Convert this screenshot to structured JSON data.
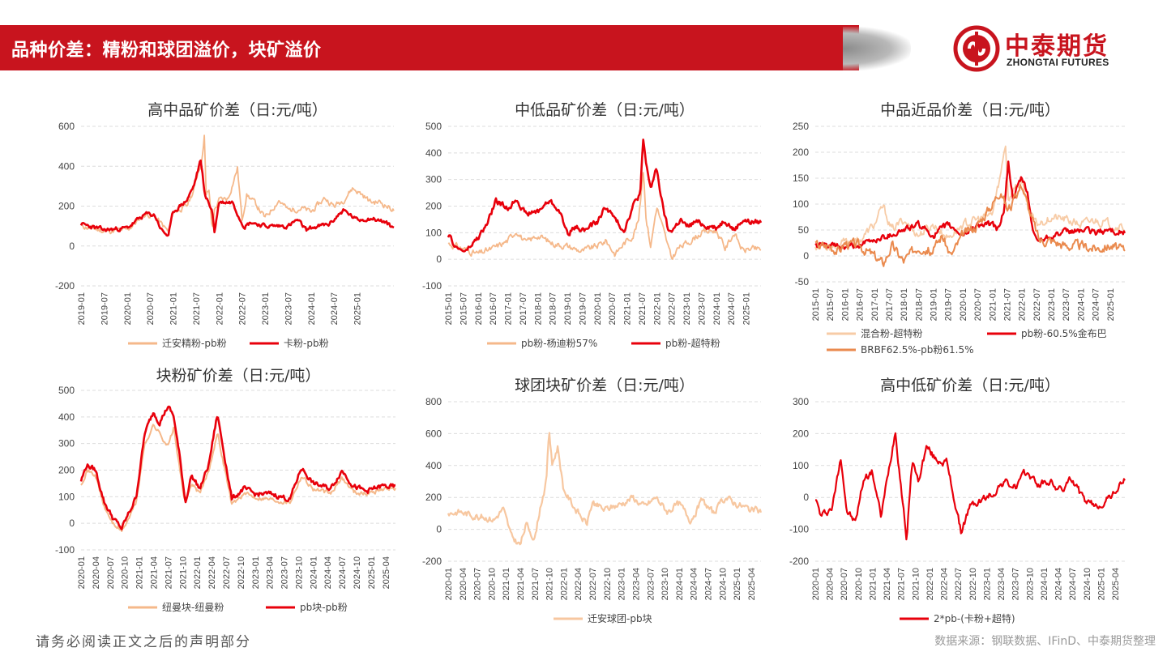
{
  "header": {
    "title": "品种价差：精粉和球团溢价，块矿溢价",
    "logo_cn": "中泰期货",
    "logo_en": "ZHONGTAI FUTURES"
  },
  "footer": {
    "disclaimer": "请务必阅读正文之后的声明部分",
    "source": "数据来源：钢联数据、IFinD、中泰期货整理"
  },
  "colors": {
    "red": "#e8000b",
    "light_orange": "#f5c49c",
    "orange": "#f0a06a",
    "dark_orange": "#e8834a"
  },
  "chart_data": [
    {
      "id": "c1",
      "type": "line",
      "title": "高中品矿价差（日:元/吨）",
      "ylim": [
        -200,
        600
      ],
      "yticks": [
        -200,
        0,
        200,
        400,
        600
      ],
      "xlim": [
        2019.0,
        2025.8
      ],
      "xticks": [
        "2019-01",
        "2019-07",
        "2020-01",
        "2020-07",
        "2021-01",
        "2021-07",
        "2022-01",
        "2022-07",
        "2023-01",
        "2023-07",
        "2024-01",
        "2024-07",
        "2025-01"
      ],
      "series": [
        {
          "name": "迁安精粉-pb粉",
          "color": "#f5b88a",
          "width": 1.8,
          "noise": 12,
          "seed": 11,
          "x": [
            2019.0,
            2019.5,
            2020.0,
            2020.4,
            2020.6,
            2020.9,
            2021.0,
            2021.3,
            2021.45,
            2021.55,
            2021.62,
            2021.68,
            2021.72,
            2021.78,
            2021.85,
            2021.9,
            2022.0,
            2022.2,
            2022.4,
            2022.5,
            2022.6,
            2022.8,
            2023.0,
            2023.3,
            2023.5,
            2023.8,
            2024.0,
            2024.3,
            2024.5,
            2024.7,
            2024.9,
            2025.1,
            2025.3,
            2025.5,
            2025.8
          ],
          "y": [
            100,
            75,
            80,
            160,
            150,
            70,
            170,
            200,
            280,
            380,
            420,
            560,
            250,
            280,
            80,
            180,
            230,
            240,
            390,
            130,
            260,
            210,
            140,
            230,
            180,
            190,
            170,
            240,
            200,
            230,
            290,
            260,
            220,
            220,
            180
          ]
        },
        {
          "name": "卡粉-pb粉",
          "color": "#e8000b",
          "width": 2.6,
          "noise": 9,
          "seed": 23,
          "x": [
            2019.0,
            2019.5,
            2020.0,
            2020.4,
            2020.6,
            2020.75,
            2020.9,
            2021.0,
            2021.3,
            2021.45,
            2021.6,
            2021.7,
            2021.85,
            2021.9,
            2022.0,
            2022.3,
            2022.45,
            2022.55,
            2022.7,
            2023.0,
            2023.5,
            2023.7,
            2023.9,
            2024.0,
            2024.4,
            2024.7,
            2025.0,
            2025.3,
            2025.6,
            2025.8
          ],
          "y": [
            110,
            80,
            90,
            160,
            155,
            80,
            50,
            170,
            230,
            300,
            430,
            250,
            180,
            70,
            220,
            220,
            140,
            100,
            120,
            100,
            100,
            130,
            80,
            90,
            110,
            180,
            130,
            140,
            120,
            90
          ]
        }
      ]
    },
    {
      "id": "c2",
      "type": "line",
      "title": "中低品矿价差（日:元/吨）",
      "ylim": [
        -100,
        500
      ],
      "yticks": [
        -100,
        0,
        100,
        200,
        300,
        400,
        500
      ],
      "xlim": [
        2015.0,
        2025.5
      ],
      "xticks": [
        "2015-01",
        "2015-07",
        "2016-01",
        "2016-07",
        "2017-01",
        "2017-07",
        "2018-01",
        "2018-07",
        "2019-01",
        "2019-07",
        "2020-01",
        "2020-07",
        "2021-01",
        "2021-07",
        "2022-01",
        "2022-07",
        "2023-01",
        "2023-07",
        "2024-01",
        "2024-07",
        "2025-01"
      ],
      "series": [
        {
          "name": "pb粉-杨迪粉57%",
          "color": "#f5b88a",
          "width": 1.8,
          "noise": 10,
          "seed": 31,
          "x": [
            2015.0,
            2015.5,
            2016.0,
            2016.5,
            2017.0,
            2017.3,
            2017.6,
            2018.0,
            2018.5,
            2019.0,
            2019.5,
            2020.0,
            2020.3,
            2020.6,
            2020.9,
            2021.2,
            2021.4,
            2021.55,
            2021.65,
            2021.8,
            2022.0,
            2022.3,
            2022.5,
            2022.7,
            2023.0,
            2023.5,
            2024.0,
            2024.3,
            2024.6,
            2024.9,
            2025.1,
            2025.5
          ],
          "y": [
            60,
            40,
            20,
            40,
            70,
            110,
            60,
            90,
            60,
            50,
            30,
            50,
            70,
            20,
            60,
            90,
            150,
            340,
            150,
            50,
            200,
            80,
            0,
            40,
            60,
            100,
            110,
            40,
            100,
            30,
            40,
            35
          ]
        },
        {
          "name": "pb粉-超特粉",
          "color": "#e8000b",
          "width": 2.6,
          "noise": 9,
          "seed": 47,
          "x": [
            2015.0,
            2015.3,
            2015.6,
            2016.0,
            2016.3,
            2016.6,
            2017.0,
            2017.3,
            2017.6,
            2018.0,
            2018.4,
            2018.7,
            2019.0,
            2019.3,
            2019.6,
            2020.0,
            2020.3,
            2020.6,
            2020.9,
            2021.2,
            2021.45,
            2021.55,
            2021.65,
            2021.8,
            2022.0,
            2022.2,
            2022.4,
            2022.6,
            2022.8,
            2023.0,
            2023.3,
            2023.6,
            2024.0,
            2024.3,
            2024.6,
            2024.9,
            2025.1,
            2025.5
          ],
          "y": [
            90,
            40,
            30,
            80,
            130,
            220,
            190,
            230,
            170,
            180,
            220,
            190,
            100,
            120,
            110,
            140,
            200,
            150,
            110,
            200,
            250,
            450,
            350,
            270,
            340,
            200,
            100,
            120,
            150,
            120,
            140,
            130,
            120,
            150,
            110,
            150,
            140,
            140
          ]
        }
      ]
    },
    {
      "id": "c3",
      "type": "line",
      "title": "中品近品价差（日:元/吨）",
      "ylim": [
        -50,
        250
      ],
      "yticks": [
        -50,
        0,
        50,
        100,
        150,
        200,
        250
      ],
      "xlim": [
        2015.0,
        2025.5
      ],
      "xticks": [
        "2015-01",
        "2015-07",
        "2016-01",
        "2016-07",
        "2017-01",
        "2017-07",
        "2018-01",
        "2018-07",
        "2019-01",
        "2019-07",
        "2020-01",
        "2020-07",
        "2021-01",
        "2021-07",
        "2022-01",
        "2022-07",
        "2023-01",
        "2023-07",
        "2024-01",
        "2024-07",
        "2025-01"
      ],
      "series": [
        {
          "name": "混合粉-超特粉",
          "color": "#f7cba6",
          "width": 1.8,
          "noise": 7,
          "seed": 53,
          "x": [
            2015.0,
            2015.5,
            2016.0,
            2016.5,
            2017.0,
            2017.3,
            2017.6,
            2018.0,
            2018.5,
            2019.0,
            2019.5,
            2020.0,
            2020.5,
            2021.0,
            2021.3,
            2021.45,
            2021.55,
            2021.7,
            2022.0,
            2022.3,
            2022.5,
            2023.0,
            2023.5,
            2024.0,
            2024.5,
            2025.0,
            2025.5
          ],
          "y": [
            20,
            20,
            25,
            30,
            60,
            95,
            50,
            70,
            40,
            60,
            35,
            60,
            70,
            80,
            160,
            220,
            110,
            130,
            140,
            80,
            60,
            75,
            70,
            60,
            70,
            60,
            55
          ]
        },
        {
          "name": "pb粉-60.5%金布巴",
          "color": "#e8000b",
          "width": 2.4,
          "noise": 5,
          "seed": 61,
          "x": [
            2015.0,
            2015.5,
            2016.0,
            2016.5,
            2017.0,
            2017.5,
            2018.0,
            2018.5,
            2019.0,
            2019.5,
            2020.0,
            2020.5,
            2021.0,
            2021.2,
            2021.4,
            2021.55,
            2021.7,
            2022.0,
            2022.2,
            2022.4,
            2022.6,
            2023.0,
            2023.5,
            2024.0,
            2024.5,
            2025.0,
            2025.5
          ],
          "y": [
            20,
            20,
            15,
            20,
            30,
            40,
            50,
            60,
            40,
            60,
            40,
            60,
            60,
            50,
            90,
            180,
            110,
            150,
            120,
            40,
            30,
            40,
            45,
            50,
            45,
            50,
            45
          ]
        },
        {
          "name": "BRBF62.5%-pb粉61.5%",
          "color": "#ea8a4e",
          "width": 2.0,
          "noise": 8,
          "seed": 67,
          "x": [
            2015.0,
            2015.5,
            2015.8,
            2016.0,
            2016.5,
            2017.0,
            2017.3,
            2017.6,
            2018.0,
            2018.5,
            2019.0,
            2019.3,
            2019.6,
            2020.0,
            2020.5,
            2021.0,
            2021.3,
            2021.5,
            2021.7,
            2022.0,
            2022.3,
            2022.6,
            2023.0,
            2023.5,
            2024.0,
            2024.5,
            2025.0,
            2025.5
          ],
          "y": [
            20,
            20,
            10,
            25,
            20,
            0,
            -15,
            20,
            -10,
            20,
            10,
            40,
            0,
            40,
            60,
            100,
            130,
            90,
            100,
            140,
            80,
            30,
            30,
            20,
            20,
            15,
            20,
            10
          ]
        }
      ]
    },
    {
      "id": "c4",
      "type": "line",
      "title": "块粉矿价差（日:元/吨）",
      "ylim": [
        -100,
        500
      ],
      "yticks": [
        -100,
        0,
        100,
        200,
        300,
        400,
        500
      ],
      "xlim": [
        2020.0,
        2025.42
      ],
      "xticks": [
        "2020-01",
        "2020-04",
        "2020-07",
        "2020-10",
        "2021-01",
        "2021-04",
        "2021-07",
        "2021-10",
        "2022-01",
        "2022-04",
        "2022-07",
        "2022-10",
        "2023-01",
        "2023-04",
        "2023-07",
        "2023-10",
        "2024-01",
        "2024-04",
        "2024-07",
        "2024-10",
        "2025-01",
        "2025-04"
      ],
      "series": [
        {
          "name": "纽曼块-纽曼粉",
          "color": "#f5b88a",
          "width": 2.0,
          "noise": 7,
          "seed": 71,
          "x": [
            2020.0,
            2020.1,
            2020.25,
            2020.4,
            2020.55,
            2020.7,
            2020.85,
            2020.95,
            2021.1,
            2021.25,
            2021.35,
            2021.5,
            2021.6,
            2021.7,
            2021.8,
            2021.9,
            2022.05,
            2022.2,
            2022.35,
            2022.5,
            2022.6,
            2022.8,
            2023.0,
            2023.3,
            2023.6,
            2023.8,
            2024.0,
            2024.3,
            2024.5,
            2024.7,
            2024.9,
            2025.2,
            2025.42
          ],
          "y": [
            150,
            200,
            180,
            60,
            0,
            -30,
            30,
            80,
            300,
            370,
            340,
            290,
            360,
            200,
            70,
            150,
            110,
            200,
            340,
            180,
            70,
            110,
            100,
            90,
            80,
            180,
            130,
            110,
            170,
            120,
            110,
            130,
            130
          ]
        },
        {
          "name": "pb块-pb粉",
          "color": "#e8000b",
          "width": 2.6,
          "noise": 8,
          "seed": 79,
          "x": [
            2020.0,
            2020.1,
            2020.25,
            2020.4,
            2020.55,
            2020.7,
            2020.85,
            2020.95,
            2021.1,
            2021.25,
            2021.35,
            2021.5,
            2021.6,
            2021.7,
            2021.8,
            2021.9,
            2022.05,
            2022.2,
            2022.35,
            2022.5,
            2022.6,
            2022.8,
            2023.0,
            2023.3,
            2023.6,
            2023.8,
            2024.0,
            2024.3,
            2024.5,
            2024.7,
            2024.9,
            2025.2,
            2025.42
          ],
          "y": [
            160,
            220,
            200,
            80,
            20,
            -20,
            50,
            100,
            340,
            420,
            380,
            440,
            400,
            250,
            80,
            180,
            130,
            220,
            410,
            220,
            90,
            130,
            110,
            110,
            90,
            210,
            150,
            130,
            200,
            140,
            120,
            140,
            135
          ]
        }
      ]
    },
    {
      "id": "c5",
      "type": "line",
      "title": "球团块矿价差（日:元/吨）",
      "ylim": [
        -200,
        800
      ],
      "yticks": [
        -200,
        0,
        200,
        400,
        600,
        800
      ],
      "xlim": [
        2020.0,
        2025.42
      ],
      "xticks": [
        "2020-01",
        "2020-04",
        "2020-07",
        "2020-10",
        "2021-01",
        "2021-04",
        "2021-07",
        "2021-10",
        "2022-01",
        "2022-04",
        "2022-07",
        "2022-10",
        "2023-01",
        "2023-04",
        "2023-07",
        "2023-10",
        "2024-01",
        "2024-04",
        "2024-07",
        "2024-10",
        "2025-01",
        "2025-04"
      ],
      "series": [
        {
          "name": "迁安球团-pb块",
          "color": "#f7c7a0",
          "width": 2.2,
          "noise": 18,
          "seed": 83,
          "x": [
            2020.0,
            2020.2,
            2020.4,
            2020.6,
            2020.8,
            2020.95,
            2021.1,
            2021.25,
            2021.35,
            2021.5,
            2021.6,
            2021.7,
            2021.75,
            2021.8,
            2021.9,
            2022.0,
            2022.2,
            2022.4,
            2022.5,
            2022.7,
            2023.0,
            2023.2,
            2023.4,
            2023.6,
            2023.8,
            2024.0,
            2024.2,
            2024.4,
            2024.6,
            2024.8,
            2025.0,
            2025.2,
            2025.42
          ],
          "y": [
            100,
            110,
            90,
            80,
            60,
            130,
            -50,
            -100,
            30,
            -60,
            150,
            300,
            630,
            400,
            520,
            250,
            130,
            30,
            170,
            120,
            160,
            200,
            140,
            200,
            110,
            160,
            60,
            180,
            100,
            200,
            160,
            130,
            110
          ]
        }
      ]
    },
    {
      "id": "c6",
      "type": "line",
      "title": "高中低矿价差（日:元/吨）",
      "ylim": [
        -200,
        300
      ],
      "yticks": [
        -200,
        -100,
        0,
        100,
        200,
        300
      ],
      "xlim": [
        2020.0,
        2025.42
      ],
      "xticks": [
        "2020-01",
        "2020-04",
        "2020-07",
        "2020-10",
        "2021-01",
        "2021-04",
        "2021-07",
        "2021-10",
        "2022-01",
        "2022-04",
        "2022-07",
        "2022-10",
        "2023-01",
        "2023-04",
        "2023-07",
        "2023-10",
        "2024-01",
        "2024-04",
        "2024-07",
        "2024-10",
        "2025-01",
        "2025-04"
      ],
      "series": [
        {
          "name": "2*pb-(卡粉+超特)",
          "color": "#e8000b",
          "width": 2.2,
          "noise": 10,
          "seed": 97,
          "x": [
            2020.0,
            2020.1,
            2020.3,
            2020.45,
            2020.55,
            2020.7,
            2020.85,
            2021.0,
            2021.15,
            2021.3,
            2021.4,
            2021.5,
            2021.6,
            2021.7,
            2021.8,
            2021.95,
            2022.1,
            2022.3,
            2022.45,
            2022.55,
            2022.7,
            2022.9,
            2023.1,
            2023.3,
            2023.5,
            2023.7,
            2023.9,
            2024.1,
            2024.3,
            2024.5,
            2024.7,
            2024.9,
            2025.1,
            2025.3,
            2025.42
          ],
          "y": [
            0,
            -60,
            -30,
            130,
            -40,
            -80,
            60,
            80,
            -60,
            100,
            210,
            40,
            -130,
            120,
            50,
            160,
            120,
            110,
            -20,
            -110,
            -30,
            -10,
            10,
            50,
            30,
            80,
            40,
            50,
            20,
            60,
            -10,
            -30,
            -10,
            30,
            55
          ]
        }
      ]
    }
  ]
}
